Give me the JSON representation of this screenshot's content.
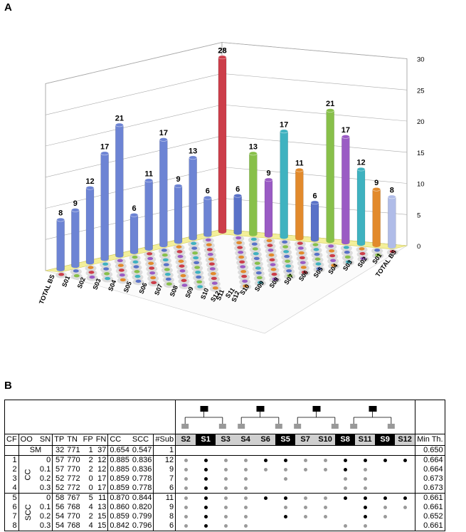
{
  "panel_a_label": "A",
  "panel_b_label": "B",
  "chart_data": {
    "type": "bar3d",
    "zlim": [
      0,
      30
    ],
    "ticks": [
      "0",
      "5",
      "10",
      "15",
      "20",
      "25",
      "30"
    ],
    "left_axis": [
      "TOTAL BS",
      "S01",
      "S02",
      "S03",
      "S04",
      "S05",
      "S06",
      "S07",
      "S08",
      "S09",
      "S10",
      "S11",
      "S12"
    ],
    "right_axis": [
      "TOTAL BS",
      "S01",
      "S02",
      "S03",
      "S04",
      "S05",
      "S06",
      "S07",
      "S08",
      "S09",
      "S10",
      "S11",
      "S12"
    ],
    "left_total_labels": [
      "8",
      "9",
      "12",
      "17",
      "21",
      "6",
      "11",
      "17",
      "9",
      "13",
      "6",
      "28"
    ],
    "left_total_values": [
      8,
      9,
      12,
      17,
      21,
      6,
      11,
      17,
      9,
      13,
      6,
      28
    ],
    "right_total_labels": [
      "28",
      "6",
      "13",
      "9",
      "17",
      "11",
      "6",
      "21",
      "17",
      "12",
      "9",
      "8"
    ],
    "right_total_values": [
      28,
      6,
      13,
      9,
      17,
      11,
      6,
      21,
      17,
      12,
      9,
      8
    ]
  },
  "table": {
    "cols": {
      "cf": "CF",
      "oo": "OO",
      "sn": "SN",
      "tp": "TP",
      "tn": "TN",
      "fp": "FP",
      "fn": "FN",
      "cc": "CC",
      "scc": "SCC",
      "nsub": "#Sub",
      "minth": "Min Th."
    },
    "subjects": [
      {
        "name": "S2",
        "style": "gy"
      },
      {
        "name": "S1",
        "style": "bk"
      },
      {
        "name": "S3",
        "style": "gy"
      },
      {
        "name": "S4",
        "style": "gy"
      },
      {
        "name": "S6",
        "style": "gy"
      },
      {
        "name": "S5",
        "style": "bk"
      },
      {
        "name": "S7",
        "style": "gy"
      },
      {
        "name": "S10",
        "style": "gy"
      },
      {
        "name": "S8",
        "style": "bk"
      },
      {
        "name": "S11",
        "style": "gy"
      },
      {
        "name": "S9",
        "style": "bk"
      },
      {
        "name": "S12",
        "style": "gy"
      }
    ],
    "sm": {
      "label": "SM",
      "tp": "32",
      "tn": "771",
      "fp": "1",
      "fn": "37",
      "cc": "0.654",
      "scc": "0.547",
      "nsub": "1",
      "minth": "0.650"
    },
    "groups": [
      {
        "name": "CC",
        "rows": [
          {
            "cf": "1",
            "sn": "0",
            "tp": "57",
            "tn": "770",
            "fp": "2",
            "fn": "12",
            "cc": "0.885",
            "scc": "0.836",
            "nsub": "12",
            "minth": "0.664",
            "dots": "gbggbbggbbbb"
          },
          {
            "cf": "2",
            "sn": "0.1",
            "tp": "57",
            "tn": "770",
            "fp": "2",
            "fn": "12",
            "cc": "0.885",
            "scc": "0.836",
            "nsub": "9",
            "minth": "0.664",
            "dots": "gbggggggbg--"
          },
          {
            "cf": "3",
            "sn": "0.2",
            "tp": "52",
            "tn": "772",
            "fp": "0",
            "fn": "17",
            "cc": "0.859",
            "scc": "0.778",
            "nsub": "7",
            "minth": "0.673",
            "dots": "gbgg-g--gg--"
          },
          {
            "cf": "4",
            "sn": "0.3",
            "tp": "52",
            "tn": "772",
            "fp": "0",
            "fn": "17",
            "cc": "0.859",
            "scc": "0.778",
            "nsub": "6",
            "minth": "0.673",
            "dots": "gbgg----gg--"
          }
        ]
      },
      {
        "name": "SCC",
        "rows": [
          {
            "cf": "5",
            "sn": "0",
            "tp": "58",
            "tn": "767",
            "fp": "5",
            "fn": "11",
            "cc": "0.870",
            "scc": "0.844",
            "nsub": "11",
            "minth": "0.661",
            "dots": "gbggbbggbbbb"
          },
          {
            "cf": "6",
            "sn": "0.1",
            "tp": "56",
            "tn": "768",
            "fp": "4",
            "fn": "13",
            "cc": "0.860",
            "scc": "0.820",
            "nsub": "9",
            "minth": "0.661",
            "dots": "gbgg-ggg-bgg"
          },
          {
            "cf": "7",
            "sn": "0.2",
            "tp": "54",
            "tn": "770",
            "fp": "2",
            "fn": "15",
            "cc": "0.859",
            "scc": "0.799",
            "nsub": "8",
            "minth": "0.652",
            "dots": "gbgg-bgg-bg-"
          },
          {
            "cf": "8",
            "sn": "0.3",
            "tp": "54",
            "tn": "768",
            "fp": "4",
            "fn": "15",
            "cc": "0.842",
            "scc": "0.796",
            "nsub": "6",
            "minth": "0.661",
            "dots": "gbgg----gg--"
          }
        ]
      }
    ]
  }
}
